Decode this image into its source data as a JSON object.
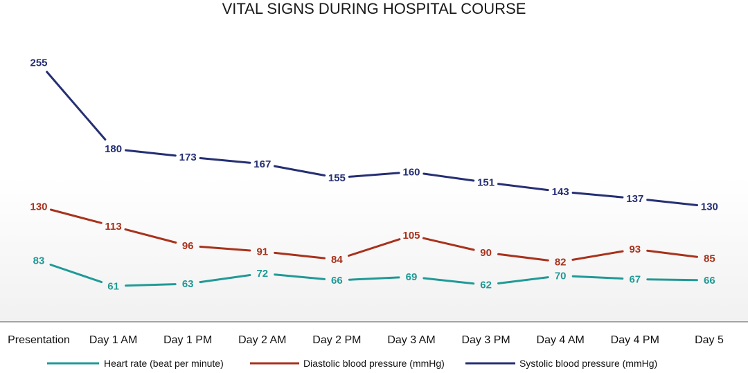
{
  "chart_data": {
    "type": "line",
    "title": "VITAL SIGNS DURING HOSPITAL COURSE",
    "categories": [
      "Presentation",
      "Day 1 AM",
      "Day 1 PM",
      "Day 2 AM",
      "Day 2 PM",
      "Day 3 AM",
      "Day 3 PM",
      "Day 4 AM",
      "Day 4 PM",
      "Day 5"
    ],
    "xlabel": "",
    "ylabel": "",
    "ylim": [
      30,
      275
    ],
    "grid": false,
    "legend_position": "bottom",
    "series": [
      {
        "name": "Heart rate (beat per minute)",
        "color": "#1f9a96",
        "values": [
          83,
          61,
          63,
          72,
          66,
          69,
          62,
          70,
          67,
          66
        ]
      },
      {
        "name": "Diastolic blood pressure (mmHg)",
        "color": "#a8321c",
        "values": [
          130,
          113,
          96,
          91,
          84,
          105,
          90,
          82,
          93,
          85
        ]
      },
      {
        "name": "Systolic blood pressure (mmHg)",
        "color": "#252f73",
        "values": [
          255,
          180,
          173,
          167,
          155,
          160,
          151,
          143,
          137,
          130
        ]
      }
    ]
  }
}
